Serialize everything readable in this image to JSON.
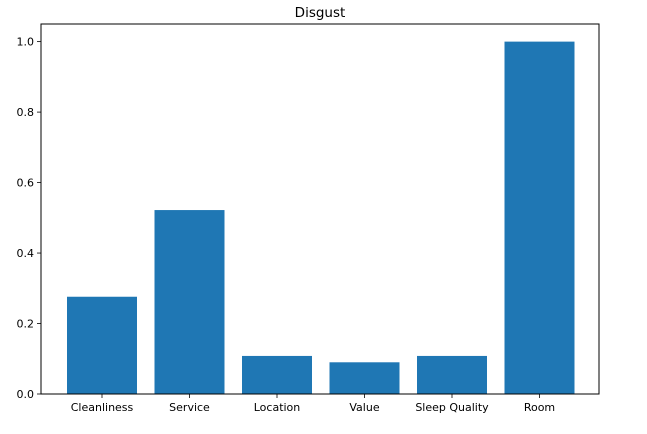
{
  "chart_data": {
    "type": "bar",
    "title": "Disgust",
    "xlabel": "",
    "ylabel": "",
    "categories": [
      "Cleanliness",
      "Service",
      "Location",
      "Value",
      "Sleep Quality",
      "Room"
    ],
    "values": [
      0.276,
      0.522,
      0.108,
      0.09,
      0.108,
      1.0
    ],
    "ylim": [
      0,
      1.05
    ],
    "yticks": [
      0.0,
      0.2,
      0.4,
      0.6,
      0.8,
      1.0
    ],
    "ytick_labels": [
      "0.0",
      "0.2",
      "0.4",
      "0.6",
      "0.8",
      "1.0"
    ],
    "grid": false,
    "legend": "none",
    "colors": {
      "bar": "#1f77b4",
      "axis": "#000000"
    }
  }
}
